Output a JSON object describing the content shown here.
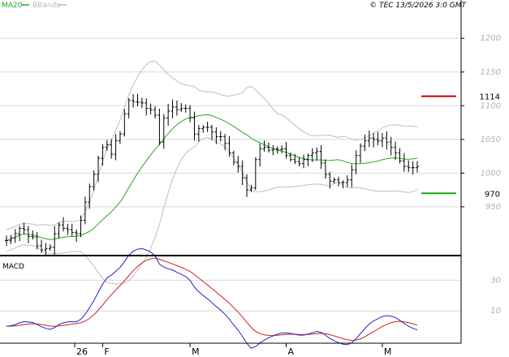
{
  "legend": {
    "ma20_label": "MA20",
    "ma20_color": "#22aa22",
    "bbands_label": "BBands",
    "bbands_color": "#bbbbbb"
  },
  "copyright": "© TEC 13/5/2026 3:0 GMT",
  "macd_label": "MACD",
  "chart_data": [
    {
      "type": "ohlc",
      "panel": "price",
      "x": [
        "2026-01-01",
        "2026-01-02",
        "2026-01-05",
        "2026-01-06",
        "2026-01-07",
        "2026-01-08",
        "2026-01-09",
        "2026-01-12",
        "2026-01-13",
        "2026-01-14",
        "2026-01-15",
        "2026-01-16",
        "2026-01-19",
        "2026-01-20",
        "2026-01-21",
        "2026-01-22",
        "2026-01-23",
        "2026-01-26",
        "2026-01-27",
        "2026-01-28",
        "2026-01-29",
        "2026-01-30",
        "2026-02-02",
        "2026-02-03",
        "2026-02-04",
        "2026-02-05",
        "2026-02-06",
        "2026-02-09",
        "2026-02-10",
        "2026-02-11",
        "2026-02-12",
        "2026-02-13",
        "2026-02-16",
        "2026-02-17",
        "2026-02-18",
        "2026-02-19",
        "2026-02-20",
        "2026-02-23",
        "2026-02-24",
        "2026-02-25",
        "2026-02-26",
        "2026-02-27",
        "2026-03-02",
        "2026-03-03",
        "2026-03-04",
        "2026-03-05",
        "2026-03-06",
        "2026-03-09",
        "2026-03-10",
        "2026-03-11",
        "2026-03-12",
        "2026-03-13",
        "2026-03-16",
        "2026-03-17",
        "2026-03-18",
        "2026-03-19",
        "2026-03-20",
        "2026-03-23",
        "2026-03-24",
        "2026-03-25",
        "2026-03-26",
        "2026-03-27",
        "2026-03-30",
        "2026-03-31",
        "2026-04-01",
        "2026-04-02",
        "2026-04-03",
        "2026-04-06",
        "2026-04-07",
        "2026-04-08",
        "2026-04-09",
        "2026-04-10",
        "2026-04-13",
        "2026-04-14",
        "2026-04-15",
        "2026-04-16",
        "2026-04-17",
        "2026-04-20",
        "2026-04-21",
        "2026-04-22",
        "2026-04-23",
        "2026-04-24",
        "2026-04-27",
        "2026-04-28",
        "2026-04-29",
        "2026-04-30",
        "2026-05-01",
        "2026-05-04",
        "2026-05-05",
        "2026-05-06",
        "2026-05-07",
        "2026-05-08",
        "2026-05-11",
        "2026-05-12",
        "2026-05-13"
      ],
      "close": [
        900,
        904,
        910,
        918,
        916,
        906,
        905,
        892,
        886,
        888,
        890,
        910,
        923,
        918,
        916,
        912,
        910,
        930,
        957,
        980,
        998,
        1022,
        1038,
        1042,
        1028,
        1048,
        1058,
        1088,
        1108,
        1106,
        1105,
        1104,
        1096,
        1094,
        1086,
        1046,
        1082,
        1092,
        1098,
        1094,
        1096,
        1096,
        1082,
        1058,
        1066,
        1068,
        1068,
        1061,
        1054,
        1054,
        1044,
        1030,
        1016,
        1010,
        993,
        975,
        978,
        1020,
        1036,
        1038,
        1034,
        1036,
        1035,
        1036,
        1026,
        1020,
        1017,
        1014,
        1020,
        1026,
        1030,
        1032,
        1015,
        998,
        988,
        990,
        986,
        986,
        990,
        1005,
        1026,
        1040,
        1048,
        1052,
        1050,
        1048,
        1052,
        1046,
        1038,
        1030,
        1018,
        1010,
        1008,
        1008,
        1010
      ],
      "title": "",
      "ylim": [
        880,
        1240
      ],
      "yticks": [
        950,
        1000,
        1050,
        1100,
        1150,
        1200
      ],
      "levels": [
        {
          "value": 1114,
          "label": "1114",
          "color": "#cc0000"
        },
        {
          "value": 970,
          "label": "970",
          "color": "#11aa11"
        }
      ]
    },
    {
      "type": "line",
      "panel": "macd",
      "series": [
        {
          "name": "MACD",
          "color": "#2222cc"
        },
        {
          "name": "signal",
          "color": "#cc2222"
        }
      ],
      "ylim": [
        -10,
        45
      ],
      "yticks": [
        10,
        30
      ],
      "xticks": [
        "26",
        "F",
        "M",
        "A",
        "M"
      ],
      "xtick_dates": [
        "2026-01-01",
        "2026-02-02",
        "2026-03-02",
        "2026-04-01",
        "2026-05-01"
      ]
    }
  ]
}
